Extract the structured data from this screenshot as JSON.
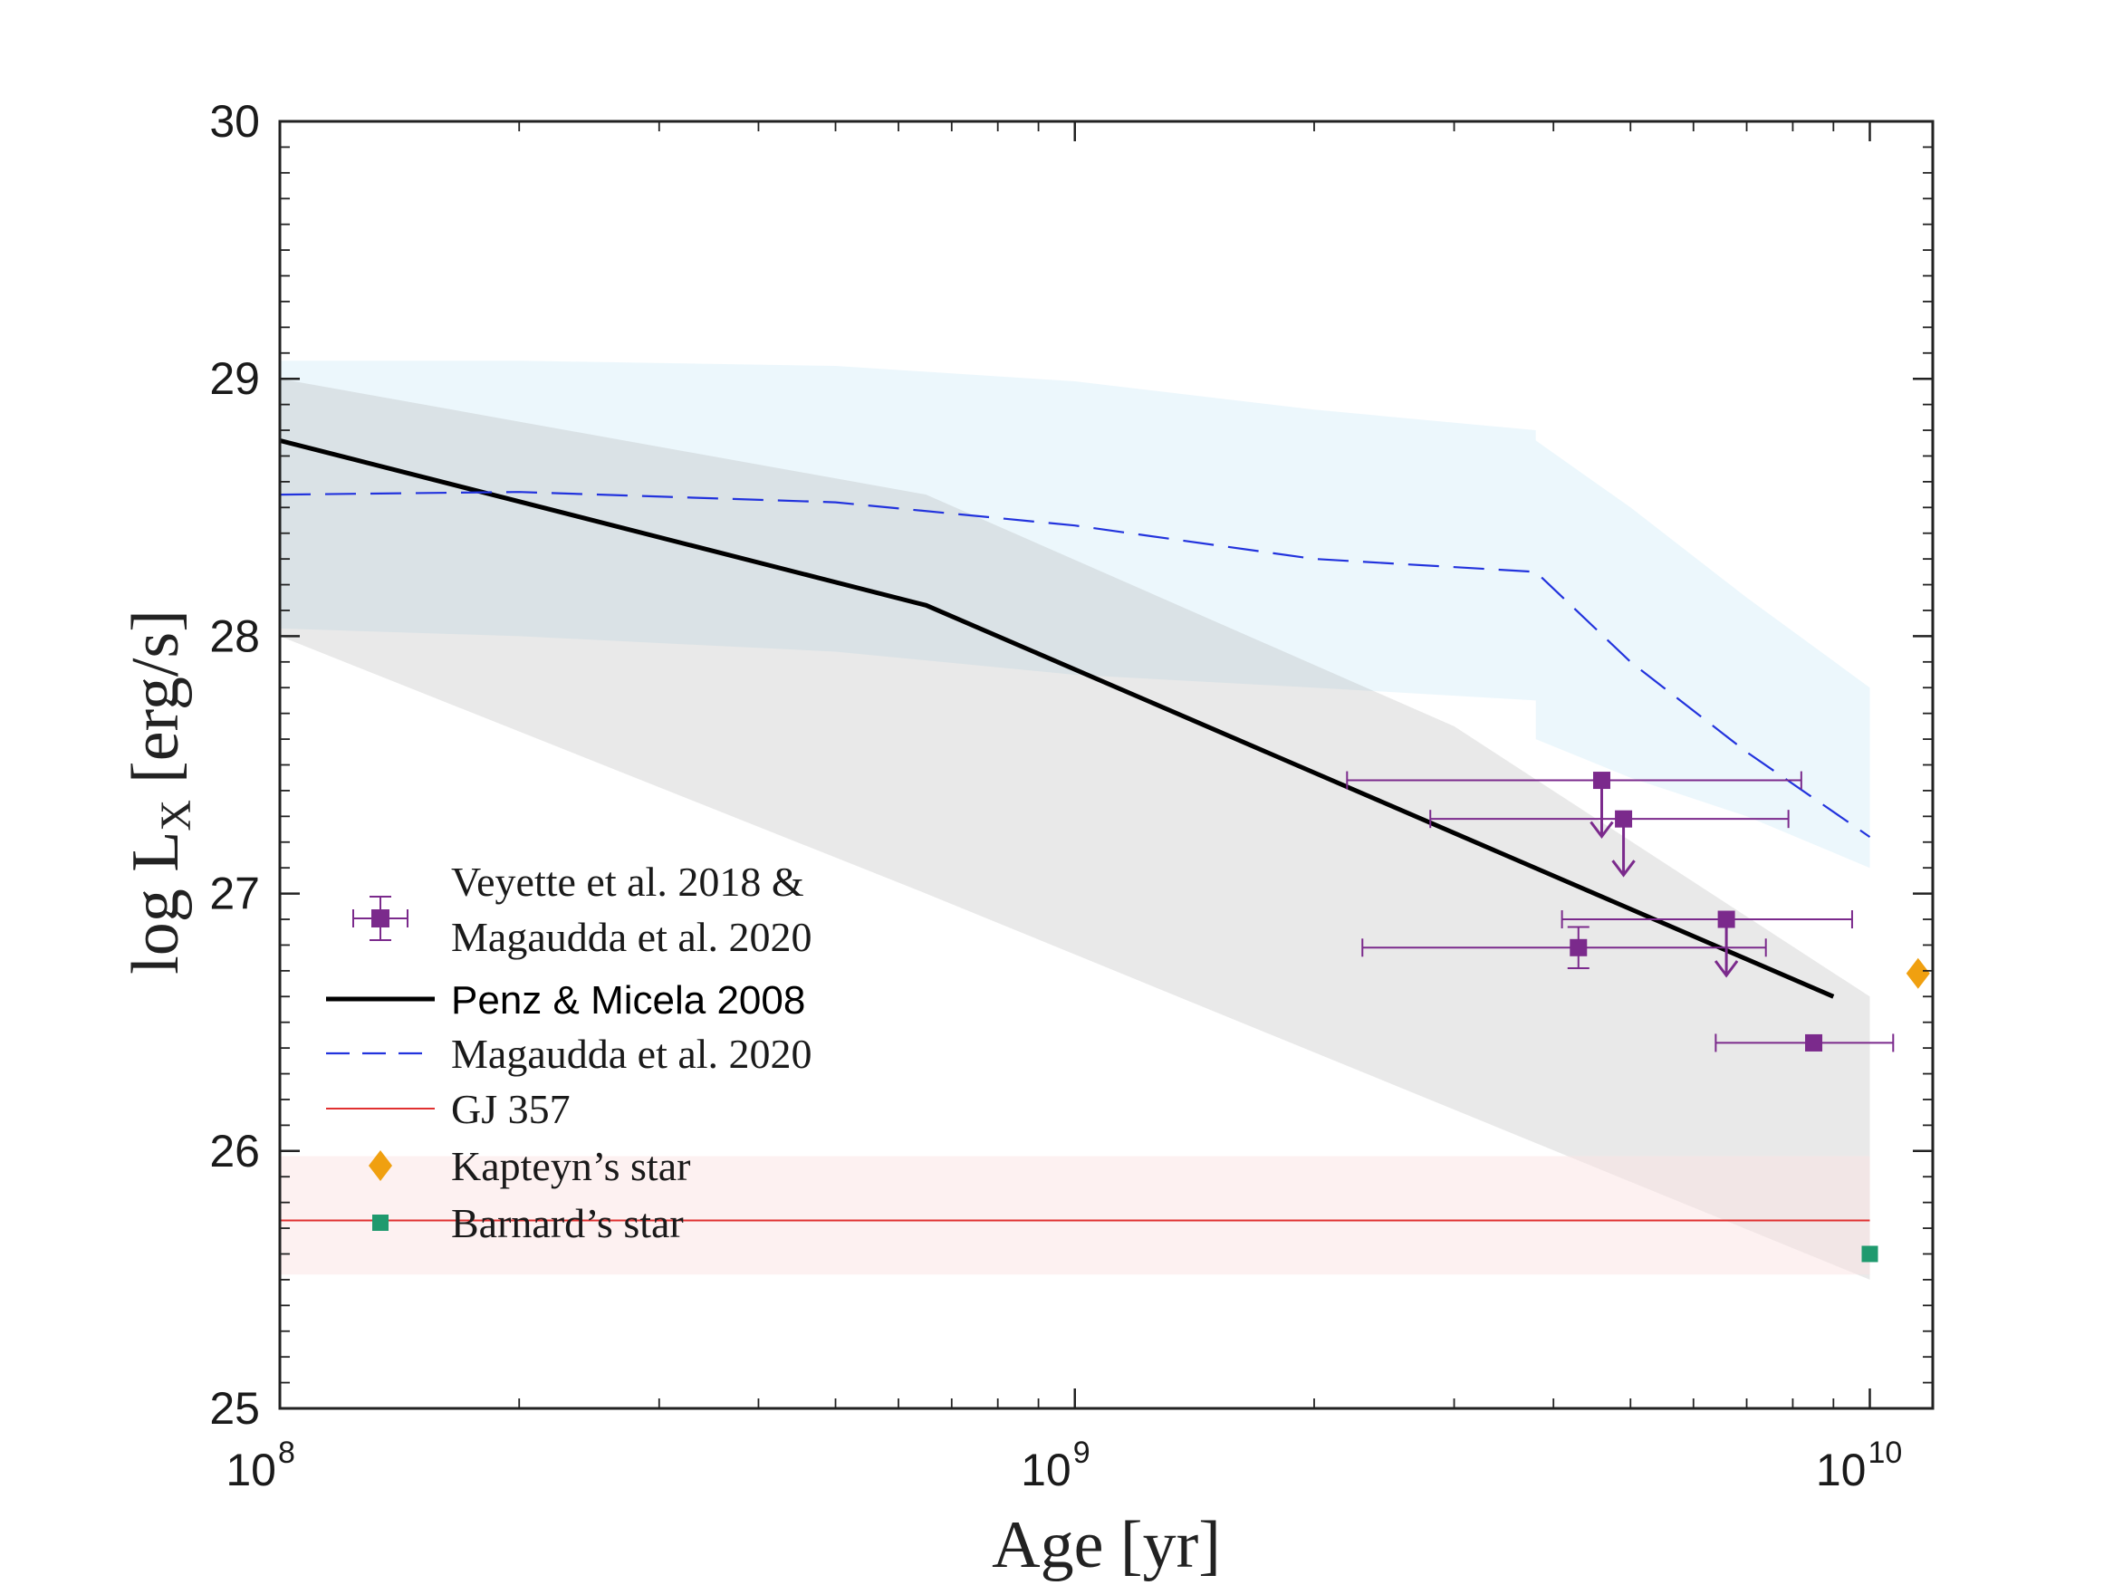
{
  "chart_data": {
    "type": "line",
    "xlabel": "Age [yr]",
    "ylabel": {
      "main": "log L",
      "sub": "X",
      "unit": "[erg/s]"
    },
    "x_scale": "log",
    "xlim": [
      100000000,
      12000000000
    ],
    "ylim": [
      25,
      30
    ],
    "x_ticks": [
      {
        "base": "10",
        "exp": "8",
        "value": 100000000
      },
      {
        "base": "10",
        "exp": "9",
        "value": 1000000000
      },
      {
        "base": "10",
        "exp": "10",
        "value": 10000000000
      }
    ],
    "y_ticks": [
      "25",
      "26",
      "27",
      "28",
      "29",
      "30"
    ],
    "grid": false,
    "legend_placement": "lower-left",
    "bands": [
      {
        "color": "#d4eef8",
        "opacity": 0.45,
        "x": [
          100000000,
          200000000,
          500000000,
          1000000000,
          2000000000,
          3800000000,
          3800000000,
          5000000000,
          7000000000,
          10000000000,
          10000000000,
          7000000000,
          5000000000,
          3800000000,
          3800000000,
          2000000000,
          1000000000,
          500000000,
          200000000,
          100000000
        ],
        "y": [
          29.07,
          29.07,
          29.05,
          28.99,
          28.88,
          28.8,
          28.76,
          28.5,
          28.15,
          27.8,
          27.1,
          27.3,
          27.45,
          27.6,
          27.75,
          27.8,
          27.85,
          27.94,
          28.0,
          28.03
        ]
      },
      {
        "color": "#9a9a9a",
        "opacity": 0.22,
        "x": [
          100000000,
          650000000,
          3000000000,
          10000000000,
          10000000000,
          650000000,
          100000000
        ],
        "y": [
          29.0,
          28.55,
          27.65,
          26.6,
          25.5,
          27.0,
          28.0
        ]
      },
      {
        "color": "#fbe3e3",
        "opacity": 0.5,
        "x": [
          100000000,
          10000000000,
          10000000000,
          100000000
        ],
        "y": [
          25.98,
          25.98,
          25.52,
          25.52
        ]
      }
    ],
    "series": [
      {
        "name": "Veyette et al. 2018 &",
        "name_line2": "Magaudda et al. 2020",
        "kind": "errorbar",
        "color": "#7b2a8c",
        "points": [
          {
            "x": 4600000000,
            "y": 27.44,
            "xerr": [
              2200000000,
              8200000000
            ],
            "upper_limit": true
          },
          {
            "x": 4900000000,
            "y": 27.29,
            "xerr": [
              2800000000,
              7900000000
            ],
            "upper_limit": true
          },
          {
            "x": 6600000000,
            "y": 26.9,
            "xerr": [
              4100000000,
              9500000000
            ],
            "upper_limit": true
          },
          {
            "x": 4300000000,
            "y": 26.79,
            "xerr": [
              2300000000,
              7400000000
            ],
            "yerr": 0.08,
            "upper_limit": false
          },
          {
            "x": 8500000000,
            "y": 26.42,
            "xerr": [
              6400000000,
              10700000000
            ],
            "upper_limit": false
          }
        ]
      },
      {
        "name": "Penz & Micela 2008",
        "kind": "line",
        "color": "#000000",
        "x": [
          100000000,
          650000000,
          9000000000
        ],
        "y": [
          28.76,
          28.12,
          26.6
        ]
      },
      {
        "name": "Magaudda et al. 2020",
        "kind": "dashed",
        "color": "#2233dd",
        "x": [
          100000000,
          200000000,
          500000000,
          1000000000,
          2000000000,
          3800000000,
          5000000000,
          7000000000,
          10000000000
        ],
        "y": [
          28.55,
          28.56,
          28.52,
          28.43,
          28.3,
          28.25,
          27.9,
          27.55,
          27.22
        ]
      },
      {
        "name": "GJ 357",
        "kind": "hline",
        "color": "#e03030",
        "x": [
          100000000,
          10000000000
        ],
        "y": [
          25.73,
          25.73
        ]
      },
      {
        "name": "Kapteyn’s star",
        "kind": "marker",
        "marker": "diamond",
        "color": "#f0a010",
        "x": [
          11500000000
        ],
        "y": [
          26.69
        ]
      },
      {
        "name": "Barnard’s star",
        "kind": "marker",
        "marker": "square",
        "color": "#1f9a6e",
        "x": [
          10000000000
        ],
        "y": [
          25.6
        ]
      }
    ]
  }
}
